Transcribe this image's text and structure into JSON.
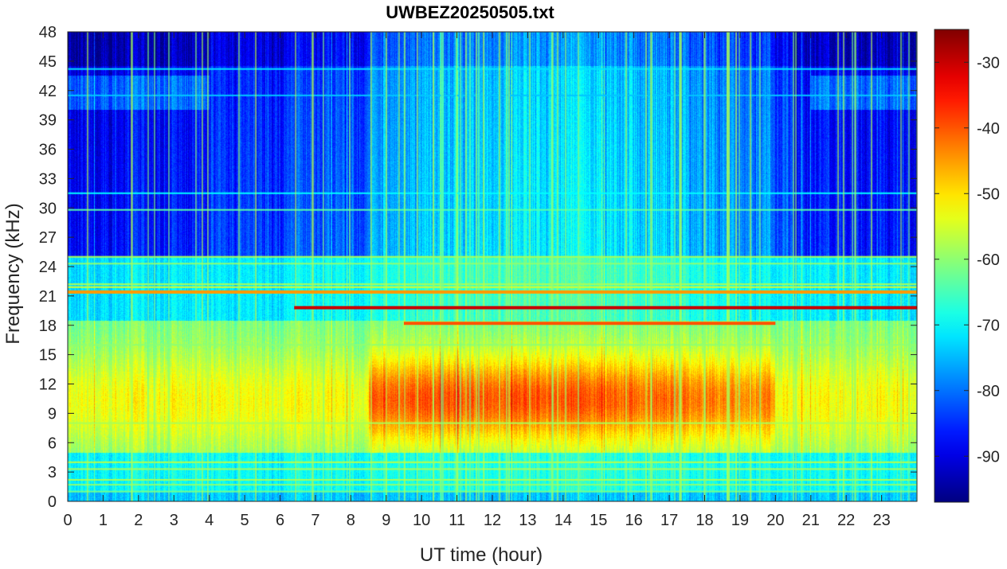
{
  "chart_data": {
    "type": "heatmap",
    "title": "UWBEZ20250505.txt",
    "xlabel": "UT time (hour)",
    "ylabel": "Frequency (kHz)",
    "xlim": [
      0,
      24
    ],
    "ylim": [
      0,
      48
    ],
    "x_ticks": [
      "0",
      "1",
      "2",
      "3",
      "4",
      "5",
      "6",
      "7",
      "8",
      "9",
      "10",
      "11",
      "12",
      "13",
      "14",
      "15",
      "16",
      "17",
      "18",
      "19",
      "20",
      "21",
      "22",
      "23"
    ],
    "y_ticks": [
      "0",
      "3",
      "6",
      "9",
      "12",
      "15",
      "18",
      "21",
      "24",
      "27",
      "30",
      "33",
      "36",
      "39",
      "42",
      "45",
      "48"
    ],
    "colorbar": {
      "colormap": "jet",
      "range": [
        -97,
        -25
      ],
      "ticks": [
        "-90",
        "-80",
        "-70",
        "-60",
        "-50",
        "-40",
        "-30"
      ]
    },
    "features": [
      {
        "name": "strong transmitter line",
        "freq_khz": 19.8,
        "start_hour": 6.4,
        "end_hour": 24,
        "level_db": -30
      },
      {
        "name": "transmitter line",
        "freq_khz": 18.2,
        "start_hour": 9.5,
        "end_hour": 20,
        "level_db": -40
      },
      {
        "name": "transmitter line",
        "freq_khz": 21.4,
        "start_hour": 0,
        "end_hour": 24,
        "level_db": -45
      },
      {
        "name": "daytime broadband band 7-14 kHz",
        "start_hour": 9,
        "end_hour": 20,
        "level_db": -45
      }
    ]
  }
}
